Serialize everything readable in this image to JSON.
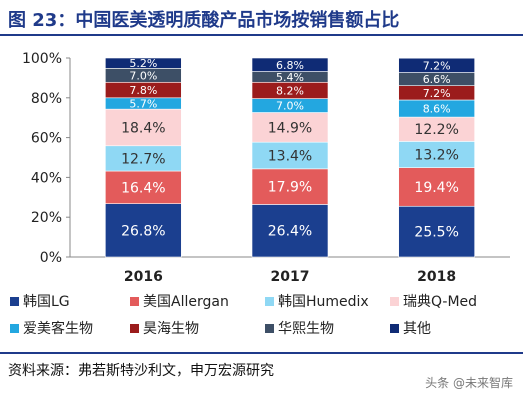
{
  "title": "图 23：中国医美透明质酸产品市场按销售额占比",
  "source": "资料来源：弗若斯特沙利文，申万宏源研究",
  "watermark": "头条 @未来智库",
  "chart_data": {
    "type": "bar",
    "stacked": true,
    "categories": [
      "2016",
      "2017",
      "2018"
    ],
    "yticks": [
      "0%",
      "20%",
      "40%",
      "60%",
      "80%",
      "100%"
    ],
    "ylim": [
      0,
      100
    ],
    "legend_position": "bottom",
    "series": [
      {
        "name": "韩国LG",
        "color": "#1b3f8f",
        "values": [
          26.8,
          26.4,
          25.5
        ],
        "labels": [
          "26.8%",
          "26.4%",
          "25.5%"
        ],
        "label_color": "#ffffff"
      },
      {
        "name": "美国Allergan",
        "color": "#e35b5b",
        "values": [
          16.4,
          17.9,
          19.4
        ],
        "labels": [
          "16.4%",
          "17.9%",
          "19.4%"
        ],
        "label_color": "#ffffff"
      },
      {
        "name": "韩国Humedix",
        "color": "#8fd8f4",
        "values": [
          12.7,
          13.4,
          13.2
        ],
        "labels": [
          "12.7%",
          "13.4%",
          "13.2%"
        ],
        "label_color": "#333333"
      },
      {
        "name": "瑞典Q-Med",
        "color": "#fbd3d5",
        "values": [
          18.4,
          14.9,
          12.2
        ],
        "labels": [
          "18.4%",
          "14.9%",
          "12.2%"
        ],
        "label_color": "#333333"
      },
      {
        "name": "爱美客生物",
        "color": "#23a7e0",
        "values": [
          5.7,
          7.0,
          8.6
        ],
        "labels": [
          "5.7%",
          "7.0%",
          "8.6%"
        ],
        "label_color": "#ffffff"
      },
      {
        "name": "昊海生物",
        "color": "#9b1c1c",
        "values": [
          7.8,
          8.2,
          7.2
        ],
        "labels": [
          "7.8%",
          "8.2%",
          "7.2%"
        ],
        "label_color": "#ffffff"
      },
      {
        "name": "华熙生物",
        "color": "#3d4f66",
        "values": [
          7.0,
          5.4,
          6.6
        ],
        "labels": [
          "7.0%",
          "5.4%",
          "6.6%"
        ],
        "label_color": "#ffffff"
      },
      {
        "name": "其他",
        "color": "#0f2b75",
        "values": [
          5.2,
          6.8,
          7.2
        ],
        "labels": [
          "5.2%",
          "6.8%",
          "7.2%"
        ],
        "label_color": "#ffffff"
      }
    ]
  }
}
